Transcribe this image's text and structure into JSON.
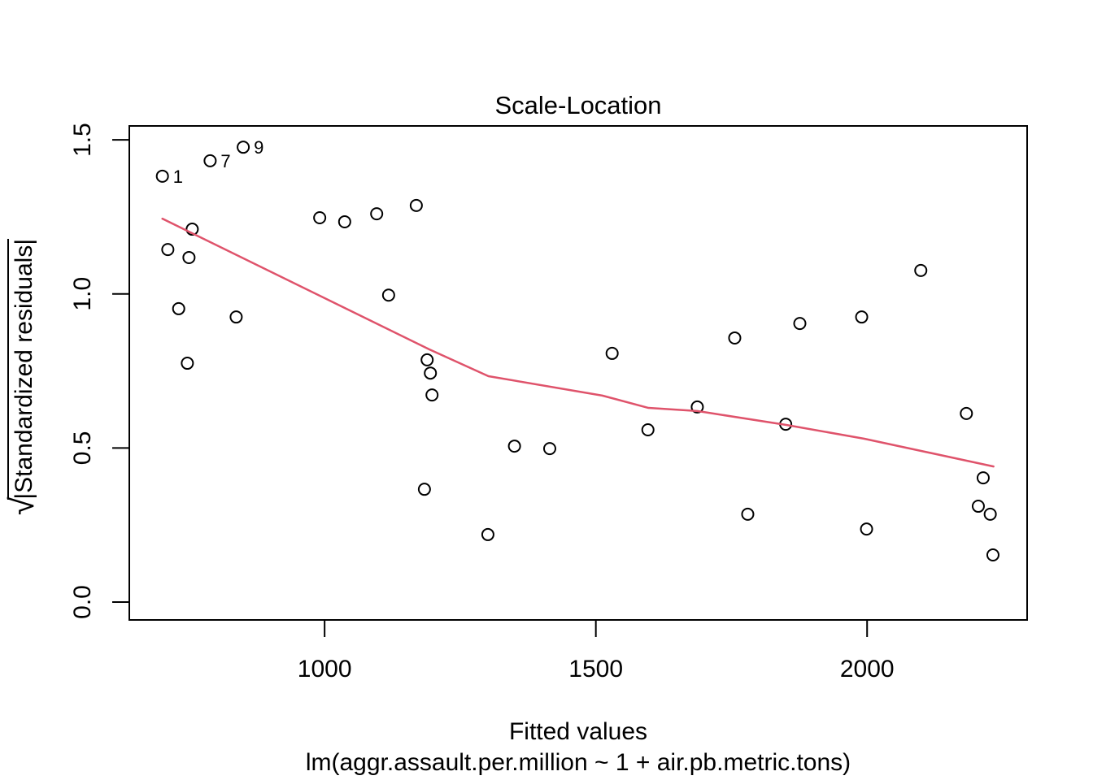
{
  "chart_data": {
    "type": "scatter",
    "title": "Scale-Location",
    "xlabel": "Fitted values",
    "xlabel_sub": "lm(aggr.assault.per.million ~ 1 + air.pb.metric.tons)",
    "ylabel": "sqrt(|Standardized residuals|)",
    "ylabel_radical": "√",
    "ylabel_radicand": "|Standardized residuals|",
    "xlim": [
      640,
      2295
    ],
    "ylim": [
      -0.058,
      1.545
    ],
    "grid": false,
    "legend": null,
    "x_ticks": [
      {
        "value": 1000,
        "label": "1000"
      },
      {
        "value": 1500,
        "label": "1500"
      },
      {
        "value": 2000,
        "label": "2000"
      }
    ],
    "y_ticks": [
      {
        "value": 0.0,
        "label": "0.0"
      },
      {
        "value": 0.5,
        "label": "0.5"
      },
      {
        "value": 1.0,
        "label": "1.0"
      },
      {
        "value": 1.5,
        "label": "1.5"
      }
    ],
    "colors": {
      "points": "#000000",
      "smoother": "#DF536B",
      "axis": "#000000",
      "background": "#FFFFFF"
    },
    "points": [
      {
        "x": 701,
        "y": 1.382,
        "id": "1"
      },
      {
        "x": 711,
        "y": 1.144
      },
      {
        "x": 731,
        "y": 0.952
      },
      {
        "x": 747,
        "y": 0.775
      },
      {
        "x": 750,
        "y": 1.118
      },
      {
        "x": 756,
        "y": 1.21
      },
      {
        "x": 789,
        "y": 1.432,
        "id": "7"
      },
      {
        "x": 837,
        "y": 0.925
      },
      {
        "x": 850,
        "y": 1.476,
        "id": "9"
      },
      {
        "x": 991,
        "y": 1.247
      },
      {
        "x": 1037,
        "y": 1.234
      },
      {
        "x": 1096,
        "y": 1.26
      },
      {
        "x": 1118,
        "y": 0.996
      },
      {
        "x": 1169,
        "y": 1.287
      },
      {
        "x": 1184,
        "y": 0.366
      },
      {
        "x": 1189,
        "y": 0.786
      },
      {
        "x": 1195,
        "y": 0.743
      },
      {
        "x": 1198,
        "y": 0.672
      },
      {
        "x": 1301,
        "y": 0.219
      },
      {
        "x": 1350,
        "y": 0.506
      },
      {
        "x": 1415,
        "y": 0.498
      },
      {
        "x": 1530,
        "y": 0.807
      },
      {
        "x": 1596,
        "y": 0.559
      },
      {
        "x": 1687,
        "y": 0.633
      },
      {
        "x": 1756,
        "y": 0.857
      },
      {
        "x": 1780,
        "y": 0.285
      },
      {
        "x": 1850,
        "y": 0.577
      },
      {
        "x": 1876,
        "y": 0.904
      },
      {
        "x": 1990,
        "y": 0.925
      },
      {
        "x": 1999,
        "y": 0.237
      },
      {
        "x": 2099,
        "y": 1.076
      },
      {
        "x": 2183,
        "y": 0.612
      },
      {
        "x": 2205,
        "y": 0.311
      },
      {
        "x": 2214,
        "y": 0.403
      },
      {
        "x": 2227,
        "y": 0.285
      },
      {
        "x": 2232,
        "y": 0.153
      }
    ],
    "smoother": [
      [
        701,
        1.244
      ],
      [
        1193,
        0.82
      ],
      [
        1302,
        0.733
      ],
      [
        1512,
        0.67
      ],
      [
        1597,
        0.63
      ],
      [
        1687,
        0.62
      ],
      [
        1850,
        0.575
      ],
      [
        1995,
        0.53
      ],
      [
        2233,
        0.44
      ]
    ]
  }
}
